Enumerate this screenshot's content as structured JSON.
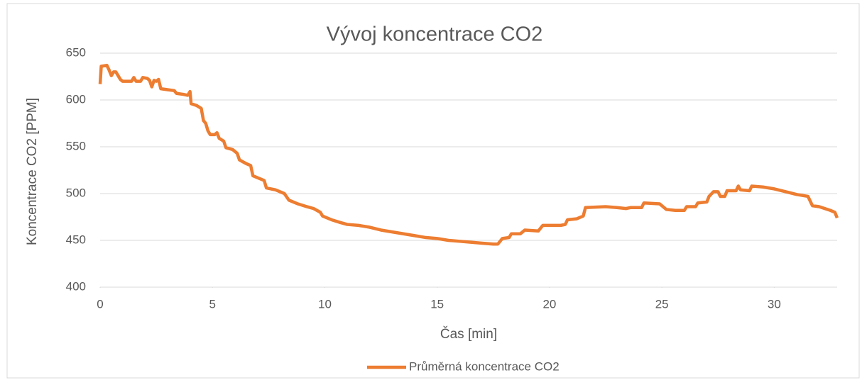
{
  "chart_data": {
    "type": "line",
    "title": "Vývoj koncentrace CO2",
    "xlabel": "Čas [min]",
    "ylabel": "Koncentrace CO2 [PPM]",
    "x": [
      0,
      0.05,
      0.3,
      0.4,
      0.5,
      0.6,
      0.7,
      0.9,
      1.0,
      1.4,
      1.5,
      1.6,
      1.8,
      1.9,
      2.1,
      2.2,
      2.3,
      2.4,
      2.5,
      2.6,
      2.7,
      3.0,
      3.3,
      3.4,
      3.7,
      3.9,
      4.0,
      4.05,
      4.3,
      4.5,
      4.6,
      4.7,
      4.8,
      4.9,
      5.1,
      5.2,
      5.3,
      5.5,
      5.6,
      5.9,
      6.1,
      6.2,
      6.5,
      6.7,
      6.8,
      7.0,
      7.3,
      7.4,
      7.8,
      8.2,
      8.4,
      8.8,
      9.2,
      9.5,
      9.8,
      9.9,
      10.3,
      10.7,
      11.0,
      11.5,
      12.0,
      12.5,
      13.0,
      13.5,
      14.0,
      14.5,
      15.0,
      15.5,
      16.0,
      16.5,
      17.0,
      17.5,
      17.7,
      17.9,
      18.2,
      18.3,
      18.7,
      18.9,
      19.5,
      19.7,
      20.5,
      20.7,
      20.8,
      21.2,
      21.5,
      21.6,
      22.5,
      23.0,
      23.4,
      23.6,
      24.1,
      24.2,
      24.9,
      25.2,
      25.6,
      26.0,
      26.1,
      26.5,
      26.6,
      27.0,
      27.1,
      27.3,
      27.5,
      27.6,
      27.8,
      27.9,
      28.3,
      28.4,
      28.5,
      28.9,
      29.0,
      29.5,
      30.0,
      30.5,
      31.0,
      31.5,
      31.7,
      32.0,
      32.5,
      32.7,
      32.8
    ],
    "series": [
      {
        "name": "Průměrná koncentrace CO2",
        "color": "#ed7d31",
        "values": [
          617,
          636,
          637,
          632,
          626,
          630,
          630,
          622,
          620,
          620,
          624,
          620,
          620,
          624,
          623,
          621,
          614,
          621,
          620,
          622,
          612,
          611,
          610,
          607,
          606,
          605,
          609,
          596,
          594,
          591,
          578,
          575,
          567,
          563,
          563,
          565,
          559,
          556,
          549,
          547,
          543,
          536,
          532,
          530,
          519,
          517,
          514,
          506,
          504,
          500,
          493,
          489,
          486,
          484,
          480,
          476,
          472,
          469,
          467,
          466,
          464,
          461,
          459,
          457,
          455,
          453,
          452,
          450,
          449,
          448,
          447,
          446,
          446,
          452,
          453,
          457,
          457,
          461,
          460,
          466,
          466,
          467,
          472,
          473,
          476,
          485,
          486,
          485,
          484,
          485,
          485,
          490,
          489,
          483,
          482,
          482,
          486,
          486,
          490,
          491,
          497,
          502,
          502,
          497,
          497,
          503,
          503,
          508,
          504,
          503,
          508,
          507,
          505,
          502,
          499,
          497,
          487,
          486,
          482,
          480,
          474
        ]
      }
    ],
    "xlim": [
      0,
      32.8
    ],
    "xticks": [
      0,
      5,
      10,
      15,
      20,
      25,
      30
    ],
    "ylim": [
      400,
      650
    ],
    "yticks": [
      400,
      450,
      500,
      550,
      600,
      650
    ],
    "grid": true,
    "legend": "bottom"
  }
}
